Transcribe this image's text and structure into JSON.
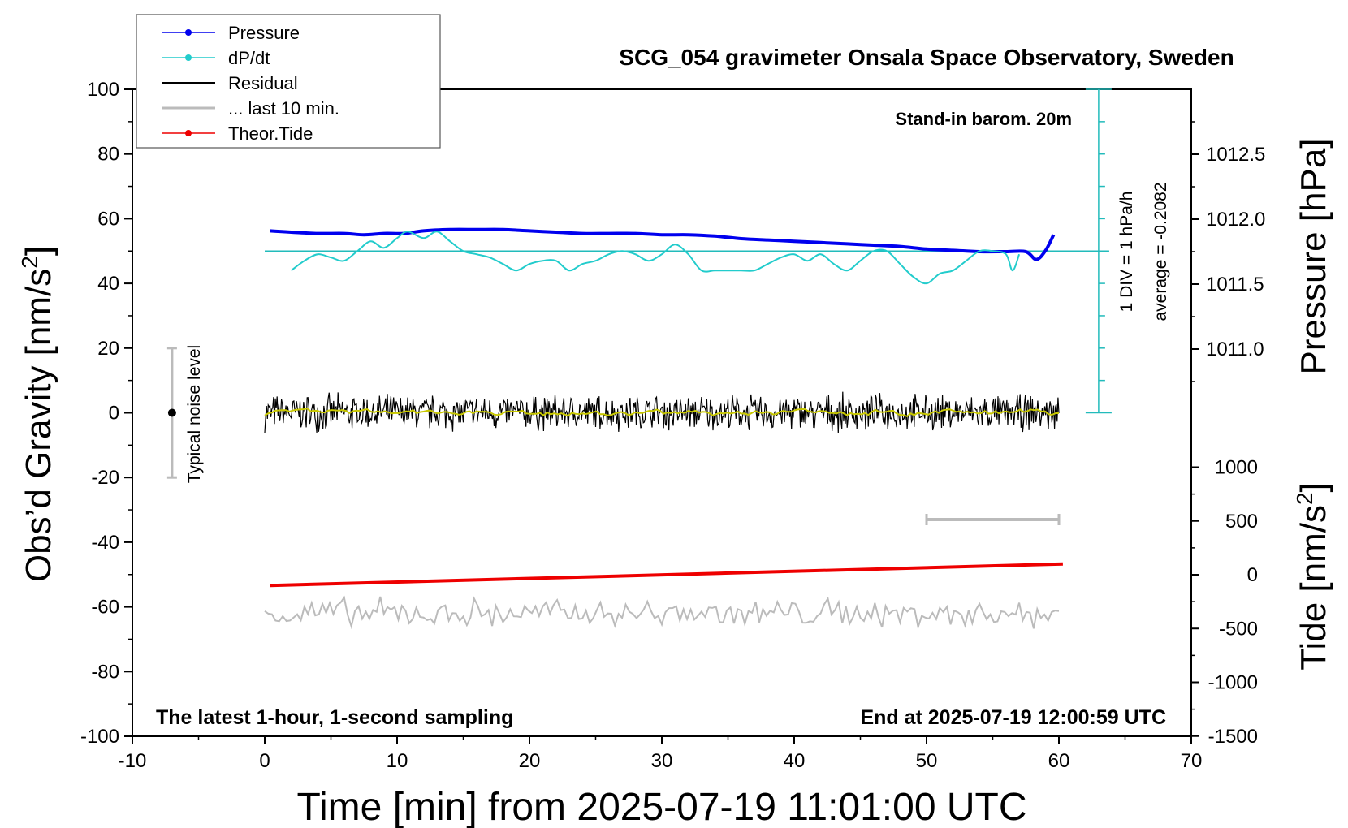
{
  "chart_data": {
    "type": "line",
    "title": "SCG_054 gravimeter Onsala Space Observatory, Sweden",
    "xlabel": "Time [min] from 2025-07-19 11:01:00 UTC",
    "ylabel_left": "Obs’d Gravity [nm/s",
    "ylabel_right_top": "Pressure [hPa]",
    "ylabel_right_bottom": "Tide [nm/s",
    "superscript": "2",
    "xlim": [
      -10,
      70
    ],
    "ylim_left": [
      -100,
      100
    ],
    "x_ticks": [
      "-10",
      "0",
      "10",
      "20",
      "30",
      "40",
      "50",
      "60",
      "70"
    ],
    "y_ticks_left": [
      "-100",
      "-80",
      "-60",
      "-40",
      "-20",
      "0",
      "20",
      "40",
      "60",
      "80",
      "100"
    ],
    "pressure_ticks": [
      {
        "value": 1011.0,
        "label": "1011.0"
      },
      {
        "value": 1011.5,
        "label": "1011.5"
      },
      {
        "value": 1012.0,
        "label": "1012.0"
      },
      {
        "value": 1012.5,
        "label": "1012.5"
      }
    ],
    "tide_ticks": [
      {
        "value": 1000,
        "label": "1000"
      },
      {
        "value": 500,
        "label": "500"
      },
      {
        "value": 0,
        "label": "0"
      },
      {
        "value": -500,
        "label": "-500"
      },
      {
        "value": -1000,
        "label": "-1000"
      },
      {
        "value": -1500,
        "label": "-1500"
      }
    ],
    "annotations": {
      "barometer": "Stand-in barom. 20m",
      "latest": "The latest 1-hour, 1-second sampling",
      "end": "End at 2025-07-19 12:00:59 UTC",
      "div": "1 DIV = 1 hPa/h",
      "average": "average = -0.2082",
      "noise": "Typical noise level"
    },
    "legend": [
      {
        "name": "Pressure",
        "color": "#0000ee",
        "marker": true
      },
      {
        "name": "dP/dt",
        "color": "#22cccc",
        "marker": true
      },
      {
        "name": "Residual",
        "color": "#000000",
        "marker": false
      },
      {
        "name": "... last 10 min.",
        "color": "#bbbbbb",
        "marker": false
      },
      {
        "name": "Theor.Tide",
        "color": "#ee0000",
        "marker": true
      }
    ],
    "series": [
      {
        "name": "Pressure",
        "color": "#0000ee",
        "x": [
          0.4,
          2,
          4,
          6,
          7.5,
          9,
          10.5,
          12,
          14,
          16,
          18,
          20,
          22,
          24,
          26,
          28,
          30,
          32,
          34,
          36,
          38,
          40,
          42,
          44,
          46,
          48,
          50,
          52,
          54,
          56,
          57.5,
          58.3,
          59,
          59.6
        ],
        "pressure_hPa": [
          1011.91,
          1011.9,
          1011.89,
          1011.89,
          1011.88,
          1011.89,
          1011.89,
          1011.91,
          1011.92,
          1011.92,
          1011.92,
          1011.91,
          1011.9,
          1011.89,
          1011.89,
          1011.89,
          1011.88,
          1011.88,
          1011.87,
          1011.85,
          1011.84,
          1011.83,
          1011.82,
          1011.81,
          1011.8,
          1011.79,
          1011.77,
          1011.76,
          1011.75,
          1011.75,
          1011.75,
          1011.69,
          1011.76,
          1011.88
        ]
      },
      {
        "name": "dP/dt",
        "color": "#22cccc",
        "x": [
          2,
          3,
          4,
          5,
          6,
          7,
          8,
          9,
          10,
          10.8,
          12,
          13,
          14,
          15,
          16,
          17,
          18,
          19,
          20,
          21,
          22,
          23,
          24,
          25,
          26,
          27,
          28,
          29,
          30,
          31,
          32,
          33,
          34,
          35,
          36,
          37,
          38,
          39,
          40,
          41,
          42,
          43,
          44,
          45,
          46,
          47,
          48,
          49,
          50,
          51,
          52,
          53,
          54,
          55,
          56,
          56.5,
          57
        ],
        "y": [
          44,
          47,
          49,
          48,
          47,
          50,
          53,
          51,
          54,
          56,
          54,
          56,
          53,
          50,
          49,
          48,
          46,
          44,
          46,
          47,
          47,
          44,
          46,
          47,
          49,
          50,
          49,
          47,
          49,
          52,
          49,
          44,
          44,
          44,
          44,
          44,
          46,
          48,
          49,
          47,
          49,
          46,
          44,
          47,
          50,
          50,
          46,
          42,
          40,
          43,
          44,
          47,
          50,
          50,
          49,
          44,
          49
        ]
      },
      {
        "name": "Theor.Tide",
        "color": "#ee0000",
        "x": [
          0.4,
          60.3
        ],
        "tide_nms2": [
          -100,
          100
        ]
      },
      {
        "name": "Residual",
        "color": "#000000",
        "x_range": [
          0,
          60
        ],
        "y_center": 0,
        "y_spread": 5
      },
      {
        "name": "... last 10 min.",
        "color": "#bbbbbb",
        "x_range": [
          0,
          60
        ],
        "y_center": -62,
        "y_spread": 4,
        "bar_x": [
          50,
          60
        ],
        "bar_y": -33
      }
    ],
    "noise_bar": {
      "x": -7,
      "y_low": -20,
      "y_high": 20,
      "y_point": 0
    },
    "dpdt_reference": {
      "y": 50,
      "scale_top_y": 100,
      "scale_bottom_y": 0,
      "x": 63
    },
    "grid": false
  }
}
